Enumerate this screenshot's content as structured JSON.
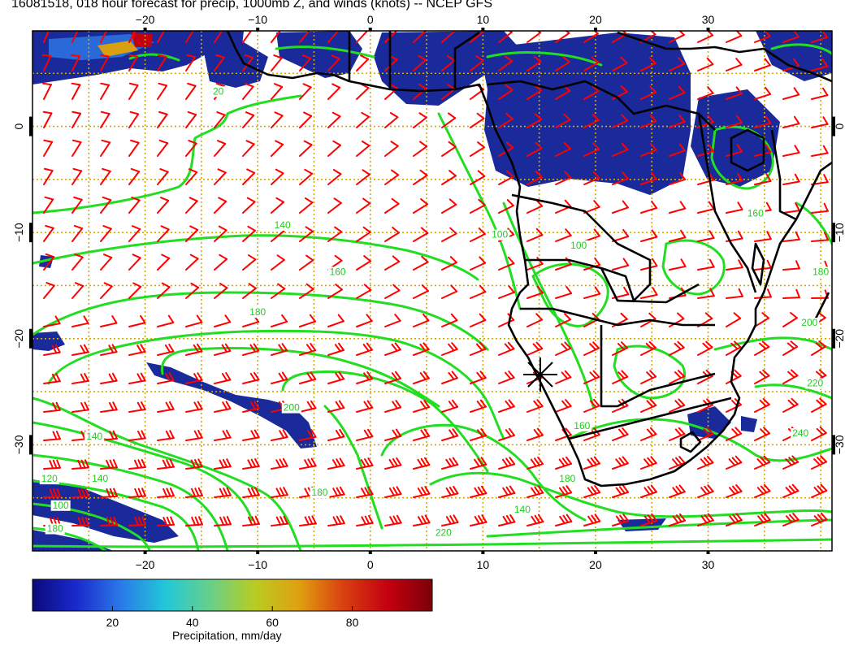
{
  "title": "16081518, 018 hour forecast for precip, 1000mb Z, and winds (knots) -- NCEP GFS",
  "map": {
    "lon_range": [
      -30,
      41
    ],
    "lat_range": [
      -40,
      9
    ],
    "lon_ticks": [
      -20,
      -10,
      0,
      10,
      20,
      30
    ],
    "lat_ticks": [
      0,
      -10,
      -20,
      -30
    ],
    "lon_tick_labels": [
      "−20",
      "−10",
      "0",
      "10",
      "20",
      "30"
    ],
    "lat_tick_labels": [
      "0",
      "−10",
      "−20",
      "−30"
    ],
    "grid_color": "#d4a800",
    "coast_color": "#000000",
    "contour_color": "#22dd22",
    "wind_color": "#ff0000",
    "precip_color": "#1a2a9a",
    "contour_labels": [
      {
        "text": "140",
        "lon": -24,
        "lat": -33.5
      },
      {
        "text": "120",
        "lon": -28.5,
        "lat": -33.5
      },
      {
        "text": "100",
        "lon": -27.5,
        "lat": -36
      },
      {
        "text": "180",
        "lon": -28,
        "lat": -38.2
      },
      {
        "text": "140",
        "lon": -24.5,
        "lat": -29.5
      },
      {
        "text": "140",
        "lon": -7.8,
        "lat": -9.6
      },
      {
        "text": "160",
        "lon": -2.9,
        "lat": -14
      },
      {
        "text": "180",
        "lon": -10,
        "lat": -17.8
      },
      {
        "text": "200",
        "lon": -7,
        "lat": -26.8
      },
      {
        "text": "180",
        "lon": -4.5,
        "lat": -34.8
      },
      {
        "text": "220",
        "lon": 6.5,
        "lat": -38.6
      },
      {
        "text": "140",
        "lon": 13.5,
        "lat": -36.4
      },
      {
        "text": "180",
        "lon": 17.5,
        "lat": -33.5
      },
      {
        "text": "160",
        "lon": 18.8,
        "lat": -28.5
      },
      {
        "text": "200",
        "lon": 39,
        "lat": -18.8
      },
      {
        "text": "240",
        "lon": 38.2,
        "lat": -29.2
      },
      {
        "text": "220",
        "lon": 39.5,
        "lat": -24.5
      },
      {
        "text": "100",
        "lon": 18.5,
        "lat": -11.5
      },
      {
        "text": "100",
        "lon": 11.5,
        "lat": -10.5
      },
      {
        "text": "20",
        "lon": -13.5,
        "lat": 3
      },
      {
        "text": "160",
        "lon": 34.2,
        "lat": -8.5
      },
      {
        "text": "180",
        "lon": 40,
        "lat": -14
      }
    ]
  },
  "colorbar": {
    "label": "Precipitation, mm/day",
    "range": [
      0,
      100
    ],
    "ticks": [
      20,
      40,
      60,
      80
    ],
    "tick_labels": [
      "20",
      "40",
      "60",
      "80"
    ],
    "stops": [
      "#0a0a7a",
      "#1a2acc",
      "#2a7ae8",
      "#22c8d8",
      "#66d08a",
      "#b8cc22",
      "#e0a010",
      "#d84010",
      "#c40010",
      "#7a0008"
    ]
  }
}
